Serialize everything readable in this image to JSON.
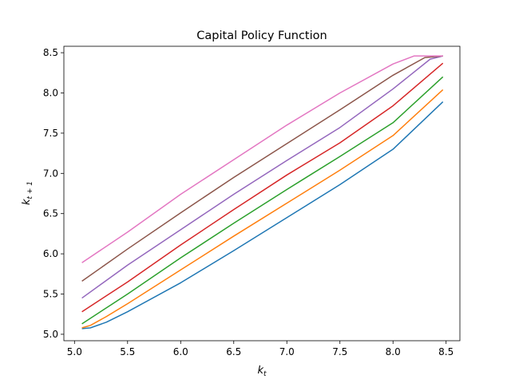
{
  "chart_data": {
    "type": "line",
    "title": "Capital Policy Function",
    "xlabel": {
      "base": "k",
      "sub": "t"
    },
    "ylabel": {
      "base": "k",
      "sub": "t + 1"
    },
    "xlim": [
      4.9,
      8.63
    ],
    "ylim": [
      4.92,
      8.58
    ],
    "xticks": [
      5.0,
      5.5,
      6.0,
      6.5,
      7.0,
      7.5,
      8.0,
      8.5
    ],
    "xtick_labels": [
      "5.0",
      "5.5",
      "6.0",
      "6.5",
      "7.0",
      "7.5",
      "8.0",
      "8.5"
    ],
    "yticks": [
      5.0,
      5.5,
      6.0,
      6.5,
      7.0,
      7.5,
      8.0,
      8.5
    ],
    "ytick_labels": [
      "5.0",
      "5.5",
      "6.0",
      "6.5",
      "7.0",
      "7.5",
      "8.0",
      "8.5"
    ],
    "grid": false,
    "legend": "none",
    "series": [
      {
        "color": "#1f77b4",
        "x": [
          5.07,
          5.15,
          5.3,
          5.5,
          6.0,
          6.5,
          7.0,
          7.5,
          8.0,
          8.47
        ],
        "y": [
          5.07,
          5.08,
          5.15,
          5.28,
          5.64,
          6.04,
          6.45,
          6.86,
          7.3,
          7.89
        ]
      },
      {
        "color": "#ff7f0e",
        "x": [
          5.07,
          5.15,
          5.3,
          5.5,
          6.0,
          6.5,
          7.0,
          7.5,
          8.0,
          8.47
        ],
        "y": [
          5.08,
          5.11,
          5.22,
          5.38,
          5.8,
          6.22,
          6.63,
          7.04,
          7.47,
          8.04
        ]
      },
      {
        "color": "#2ca02c",
        "x": [
          5.07,
          5.5,
          6.0,
          6.5,
          7.0,
          7.5,
          8.0,
          8.47
        ],
        "y": [
          5.13,
          5.5,
          5.95,
          6.38,
          6.8,
          7.21,
          7.63,
          8.2
        ]
      },
      {
        "color": "#d62728",
        "x": [
          5.07,
          5.5,
          6.0,
          6.5,
          7.0,
          7.5,
          8.0,
          8.47
        ],
        "y": [
          5.28,
          5.65,
          6.11,
          6.55,
          6.98,
          7.38,
          7.84,
          8.37
        ]
      },
      {
        "color": "#9467bd",
        "x": [
          5.07,
          5.5,
          6.0,
          6.5,
          7.0,
          7.5,
          8.0,
          8.35,
          8.47
        ],
        "y": [
          5.45,
          5.86,
          6.3,
          6.74,
          7.16,
          7.57,
          8.05,
          8.42,
          8.46
        ]
      },
      {
        "color": "#8c564b",
        "x": [
          5.07,
          5.5,
          6.0,
          6.5,
          7.0,
          7.5,
          8.0,
          8.3,
          8.47
        ],
        "y": [
          5.66,
          6.06,
          6.51,
          6.95,
          7.37,
          7.79,
          8.22,
          8.44,
          8.46
        ]
      },
      {
        "color": "#e377c2",
        "x": [
          5.07,
          5.5,
          6.0,
          6.5,
          7.0,
          7.5,
          8.0,
          8.2,
          8.47
        ],
        "y": [
          5.89,
          6.27,
          6.74,
          7.17,
          7.6,
          8.0,
          8.36,
          8.46,
          8.46
        ]
      }
    ]
  }
}
